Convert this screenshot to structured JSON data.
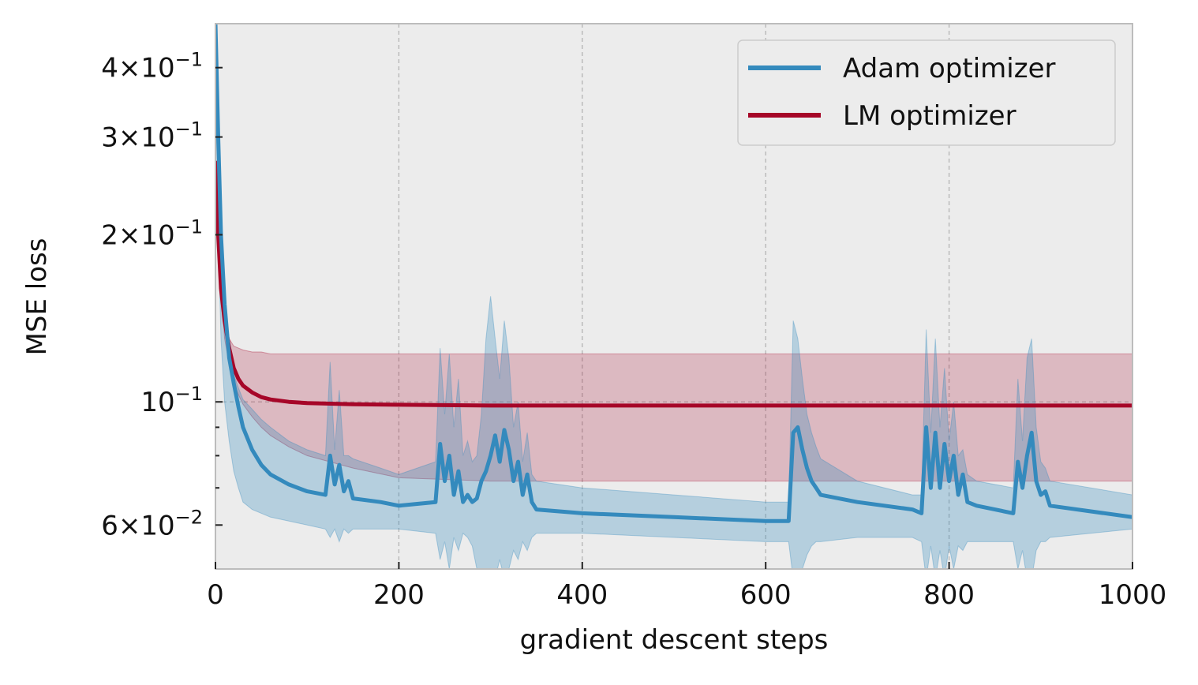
{
  "chart_data": {
    "type": "line",
    "title": "",
    "xlabel": "gradient descent steps",
    "ylabel": "MSE loss",
    "xlim": [
      0,
      1000
    ],
    "ylim": [
      0.05,
      0.48
    ],
    "yscale": "log",
    "grid": "dashed vertical lines at major x ticks",
    "x_ticks": [
      {
        "value": 0,
        "label": "0"
      },
      {
        "value": 200,
        "label": "200"
      },
      {
        "value": 400,
        "label": "400"
      },
      {
        "value": 600,
        "label": "600"
      },
      {
        "value": 800,
        "label": "800"
      },
      {
        "value": 1000,
        "label": "1000"
      }
    ],
    "y_ticks": [
      {
        "value": 0.06,
        "base": "6",
        "mult": "×",
        "exp_base": "10",
        "exponent": "−2"
      },
      {
        "value": 0.1,
        "base": "",
        "mult": "",
        "exp_base": "10",
        "exponent": "−1"
      },
      {
        "value": 0.2,
        "base": "2",
        "mult": "×",
        "exp_base": "10",
        "exponent": "−1"
      },
      {
        "value": 0.3,
        "base": "3",
        "mult": "×",
        "exp_base": "10",
        "exponent": "−1"
      },
      {
        "value": 0.4,
        "base": "4",
        "mult": "×",
        "exp_base": "10",
        "exponent": "−1"
      }
    ],
    "y_minor_ticks": [
      0.07,
      0.08,
      0.09
    ],
    "legend_position": "top-right",
    "series": [
      {
        "name": "Adam optimizer",
        "color": "#348abd",
        "x": [
          0,
          3,
          6,
          10,
          15,
          20,
          25,
          30,
          40,
          50,
          60,
          80,
          100,
          120,
          125,
          130,
          135,
          140,
          145,
          150,
          180,
          200,
          240,
          245,
          250,
          255,
          260,
          265,
          270,
          275,
          280,
          285,
          290,
          295,
          300,
          305,
          310,
          315,
          320,
          325,
          330,
          335,
          340,
          345,
          350,
          400,
          500,
          600,
          625,
          630,
          635,
          640,
          645,
          650,
          655,
          660,
          700,
          760,
          770,
          775,
          780,
          785,
          790,
          795,
          800,
          805,
          810,
          815,
          820,
          830,
          870,
          875,
          880,
          885,
          890,
          895,
          900,
          905,
          910,
          1000
        ],
        "y": [
          0.48,
          0.3,
          0.2,
          0.15,
          0.12,
          0.108,
          0.098,
          0.09,
          0.082,
          0.077,
          0.074,
          0.071,
          0.069,
          0.068,
          0.08,
          0.071,
          0.077,
          0.069,
          0.072,
          0.067,
          0.066,
          0.065,
          0.066,
          0.084,
          0.072,
          0.08,
          0.068,
          0.075,
          0.066,
          0.068,
          0.066,
          0.067,
          0.072,
          0.075,
          0.08,
          0.087,
          0.078,
          0.089,
          0.082,
          0.072,
          0.078,
          0.068,
          0.074,
          0.066,
          0.064,
          0.063,
          0.062,
          0.061,
          0.061,
          0.088,
          0.09,
          0.082,
          0.076,
          0.072,
          0.07,
          0.068,
          0.066,
          0.064,
          0.063,
          0.09,
          0.07,
          0.088,
          0.07,
          0.084,
          0.072,
          0.08,
          0.068,
          0.074,
          0.066,
          0.065,
          0.063,
          0.078,
          0.07,
          0.08,
          0.088,
          0.072,
          0.068,
          0.069,
          0.065,
          0.062
        ],
        "band_upper": [
          0.48,
          0.3,
          0.2,
          0.15,
          0.122,
          0.112,
          0.106,
          0.101,
          0.097,
          0.093,
          0.09,
          0.085,
          0.082,
          0.08,
          0.118,
          0.082,
          0.105,
          0.08,
          0.08,
          0.079,
          0.076,
          0.074,
          0.078,
          0.125,
          0.095,
          0.122,
          0.09,
          0.11,
          0.08,
          0.085,
          0.078,
          0.08,
          0.095,
          0.13,
          0.155,
          0.13,
          0.11,
          0.14,
          0.12,
          0.09,
          0.1,
          0.078,
          0.088,
          0.074,
          0.072,
          0.07,
          0.068,
          0.066,
          0.066,
          0.14,
          0.13,
          0.11,
          0.095,
          0.088,
          0.083,
          0.079,
          0.072,
          0.068,
          0.068,
          0.135,
          0.088,
          0.13,
          0.09,
          0.115,
          0.085,
          0.1,
          0.08,
          0.082,
          0.074,
          0.072,
          0.07,
          0.11,
          0.085,
          0.12,
          0.13,
          0.09,
          0.078,
          0.076,
          0.072,
          0.068
        ],
        "band_lower": [
          0.4,
          0.2,
          0.13,
          0.1,
          0.085,
          0.075,
          0.07,
          0.066,
          0.064,
          0.063,
          0.062,
          0.061,
          0.06,
          0.059,
          0.057,
          0.059,
          0.056,
          0.059,
          0.058,
          0.059,
          0.059,
          0.059,
          0.058,
          0.052,
          0.056,
          0.05,
          0.057,
          0.054,
          0.058,
          0.057,
          0.055,
          0.05,
          0.048,
          0.048,
          0.05,
          0.048,
          0.052,
          0.048,
          0.05,
          0.054,
          0.052,
          0.056,
          0.054,
          0.057,
          0.058,
          0.058,
          0.057,
          0.056,
          0.056,
          0.048,
          0.048,
          0.05,
          0.053,
          0.055,
          0.056,
          0.056,
          0.057,
          0.057,
          0.056,
          0.048,
          0.055,
          0.048,
          0.054,
          0.048,
          0.055,
          0.05,
          0.055,
          0.054,
          0.056,
          0.056,
          0.056,
          0.05,
          0.054,
          0.048,
          0.048,
          0.054,
          0.056,
          0.056,
          0.057,
          0.059
        ]
      },
      {
        "name": "LM optimizer",
        "color": "#a60628",
        "x": [
          0,
          3,
          6,
          10,
          15,
          20,
          25,
          30,
          40,
          50,
          60,
          80,
          100,
          150,
          200,
          300,
          400,
          500,
          600,
          700,
          800,
          900,
          1000
        ],
        "y": [
          0.27,
          0.2,
          0.16,
          0.14,
          0.125,
          0.115,
          0.11,
          0.107,
          0.104,
          0.102,
          0.101,
          0.1,
          0.0995,
          0.099,
          0.0988,
          0.0985,
          0.0985,
          0.0985,
          0.0985,
          0.0985,
          0.0985,
          0.0985,
          0.0985
        ],
        "band_upper": [
          0.27,
          0.2,
          0.16,
          0.14,
          0.13,
          0.126,
          0.125,
          0.124,
          0.123,
          0.123,
          0.122,
          0.122,
          0.122,
          0.122,
          0.122,
          0.122,
          0.122,
          0.122,
          0.122,
          0.122,
          0.122,
          0.122,
          0.122
        ],
        "band_lower": [
          0.27,
          0.2,
          0.16,
          0.13,
          0.117,
          0.108,
          0.103,
          0.099,
          0.094,
          0.09,
          0.087,
          0.083,
          0.08,
          0.076,
          0.073,
          0.072,
          0.072,
          0.072,
          0.072,
          0.072,
          0.072,
          0.072,
          0.072
        ]
      }
    ]
  }
}
